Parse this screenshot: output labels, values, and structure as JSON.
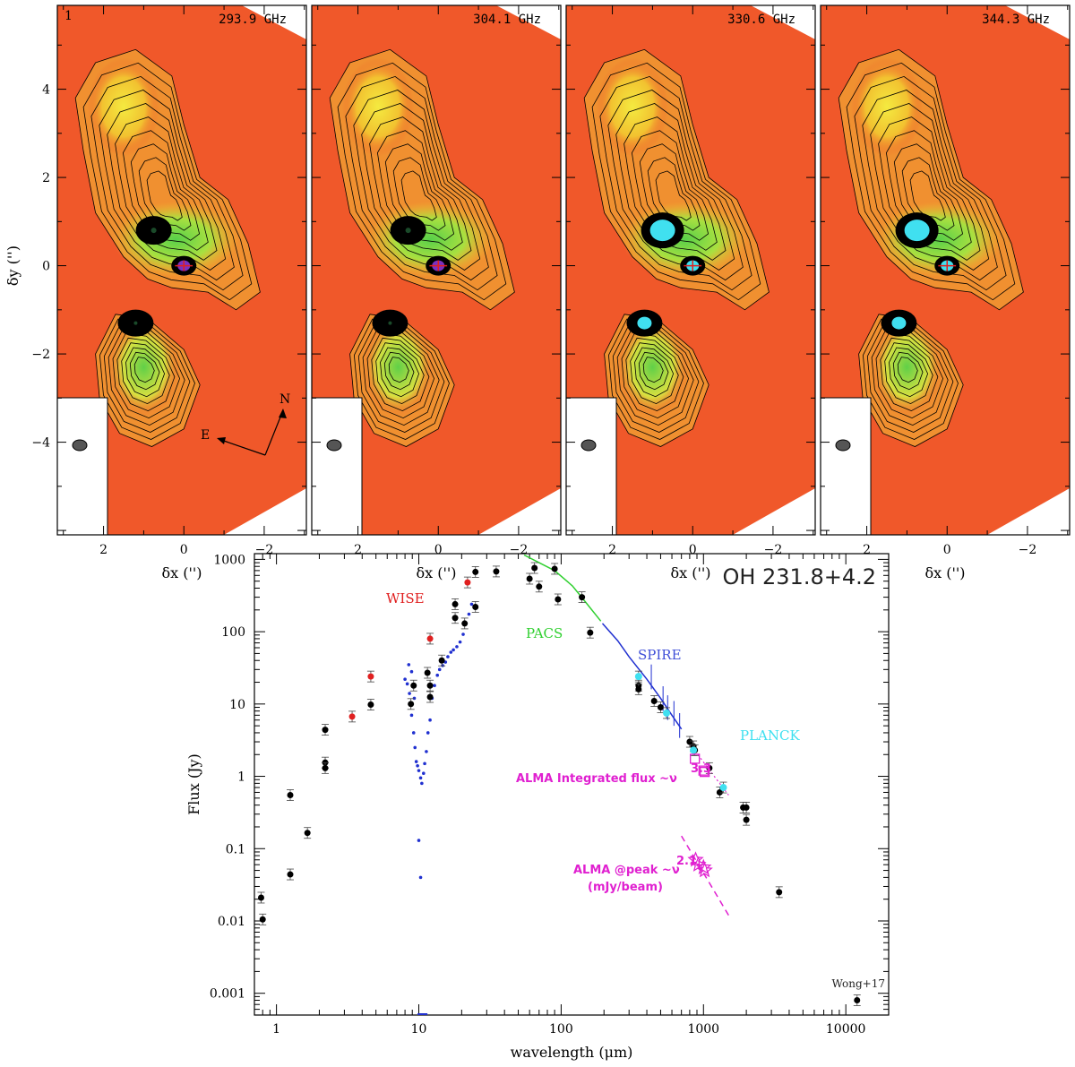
{
  "maps": {
    "panel_number": "1",
    "panels": [
      {
        "freq": "293.9 GHz"
      },
      {
        "freq": "304.1 GHz"
      },
      {
        "freq": "330.6 GHz"
      },
      {
        "freq": "344.3 GHz"
      }
    ],
    "xlabel": "δx ('')",
    "ylabel": "δy ('')",
    "x_ticks": [
      "2",
      "0",
      "−2"
    ],
    "y_ticks": [
      "4",
      "2",
      "0",
      "−2",
      "−4"
    ],
    "compass_n": "N",
    "compass_e": "E",
    "colors": {
      "background": "#f0582a",
      "mid": "#f2c230",
      "high": "#58d04a",
      "peak": "#40e0f0"
    }
  },
  "chart_data": {
    "type": "scatter",
    "title": "OH 231.8+4.2",
    "xlabel": "wavelength (μm)",
    "ylabel": "Flux (Jy)",
    "xscale": "log",
    "yscale": "log",
    "xlim": [
      0.7,
      20000
    ],
    "ylim": [
      0.0005,
      1200
    ],
    "x_ticks": [
      "1",
      "10",
      "100",
      "1000",
      "10000"
    ],
    "y_ticks": [
      "0.001",
      "0.01",
      "0.1",
      "1",
      "10",
      "100",
      "1000"
    ],
    "labels": {
      "wise": "WISE",
      "pacs": "PACS",
      "spire": "SPIRE",
      "planck": "PLANCK",
      "alma_int": "ALMA Integrated flux ~ν",
      "alma_int_exp": "3.3",
      "alma_peak": "ALMA @peak ~ν",
      "alma_peak_exp": "2.1",
      "alma_peak_unit": "(mJy/beam)",
      "credit": "Wong+17"
    },
    "colors": {
      "black": "#000000",
      "wise": "#e02020",
      "pacs": "#30d030",
      "spire": "#2030d0",
      "planck": "#40e0f0",
      "alma": "#e020d0"
    },
    "series": [
      {
        "name": "photometry",
        "points": [
          [
            0.78,
            0.021
          ],
          [
            0.8,
            0.0105
          ],
          [
            1.25,
            0.55
          ],
          [
            1.25,
            0.044
          ],
          [
            1.65,
            0.165
          ],
          [
            2.2,
            4.4
          ],
          [
            2.2,
            1.55
          ],
          [
            2.2,
            1.3
          ],
          [
            4.6,
            9.8
          ],
          [
            8.8,
            10
          ],
          [
            9.2,
            18
          ],
          [
            11.5,
            27
          ],
          [
            12,
            12.5
          ],
          [
            12,
            18
          ],
          [
            14.5,
            40
          ],
          [
            18,
            240
          ],
          [
            18,
            155
          ],
          [
            21,
            130
          ],
          [
            25,
            670
          ],
          [
            25,
            220
          ],
          [
            35,
            680
          ],
          [
            60,
            540
          ],
          [
            65,
            760
          ],
          [
            70,
            420
          ],
          [
            90,
            740
          ],
          [
            95,
            280
          ],
          [
            140,
            300
          ],
          [
            160,
            97
          ],
          [
            350,
            18
          ],
          [
            350,
            16
          ],
          [
            450,
            11
          ],
          [
            500,
            9
          ],
          [
            800,
            3
          ],
          [
            850,
            2.6
          ],
          [
            870,
            2.3
          ],
          [
            1100,
            1.3
          ],
          [
            1300,
            0.6
          ],
          [
            1900,
            0.37
          ],
          [
            2000,
            0.37
          ],
          [
            2000,
            0.25
          ],
          [
            3400,
            0.025
          ],
          [
            12000,
            0.0008
          ]
        ]
      },
      {
        "name": "WISE",
        "points": [
          [
            3.4,
            6.7
          ],
          [
            4.6,
            24
          ],
          [
            12,
            80
          ],
          [
            22,
            480
          ]
        ]
      },
      {
        "name": "PLANCK",
        "points": [
          [
            350,
            24
          ],
          [
            550,
            7.5
          ],
          [
            850,
            2.3
          ],
          [
            1380,
            0.7
          ]
        ]
      },
      {
        "name": "ALMA Integrated flux",
        "points": [
          [
            870,
            1.75
          ],
          [
            1000,
            1.2
          ],
          [
            1020,
            1.15
          ]
        ]
      },
      {
        "name": "ALMA @peak",
        "points": [
          [
            880,
            0.07
          ],
          [
            920,
            0.06
          ],
          [
            1000,
            0.055
          ],
          [
            1020,
            0.05
          ]
        ]
      }
    ],
    "spectra": {
      "spire_blue_dots": [
        [
          8,
          22
        ],
        [
          8.3,
          19
        ],
        [
          8.6,
          14
        ],
        [
          8.9,
          7
        ],
        [
          9.2,
          4
        ],
        [
          9.4,
          2.5
        ],
        [
          9.6,
          1.6
        ],
        [
          9.8,
          1.4
        ],
        [
          10,
          1.2
        ],
        [
          10.3,
          0.95
        ],
        [
          10.5,
          0.8
        ],
        [
          10.8,
          1.1
        ],
        [
          11,
          1.5
        ],
        [
          11.3,
          2.2
        ],
        [
          11.6,
          4
        ],
        [
          12,
          6
        ],
        [
          12.4,
          12
        ],
        [
          12.9,
          18
        ],
        [
          13.5,
          25
        ],
        [
          14,
          30
        ],
        [
          14.7,
          34
        ],
        [
          15.4,
          38
        ],
        [
          16,
          45
        ],
        [
          16.8,
          52
        ],
        [
          17.5,
          56
        ],
        [
          18.5,
          62
        ],
        [
          19.5,
          72
        ],
        [
          20.5,
          92
        ],
        [
          21.5,
          130
        ],
        [
          22.5,
          175
        ],
        [
          23.5,
          240
        ],
        [
          8.5,
          35
        ],
        [
          8.9,
          28
        ],
        [
          9.3,
          12
        ],
        [
          10,
          0.13
        ],
        [
          10.3,
          0.04
        ]
      ],
      "pacs_line": [
        [
          55,
          1150
        ],
        [
          70,
          900
        ],
        [
          90,
          700
        ],
        [
          120,
          430
        ],
        [
          150,
          250
        ],
        [
          190,
          140
        ]
      ],
      "spire_line": [
        [
          195,
          130
        ],
        [
          250,
          75
        ],
        [
          300,
          45
        ],
        [
          400,
          22
        ],
        [
          500,
          12
        ],
        [
          600,
          7
        ],
        [
          700,
          4.5
        ]
      ],
      "alma_int_fit": [
        [
          800,
          2.8
        ],
        [
          1500,
          0.55
        ]
      ],
      "alma_peak_fit": [
        [
          700,
          0.15
        ],
        [
          1500,
          0.012
        ]
      ]
    }
  }
}
